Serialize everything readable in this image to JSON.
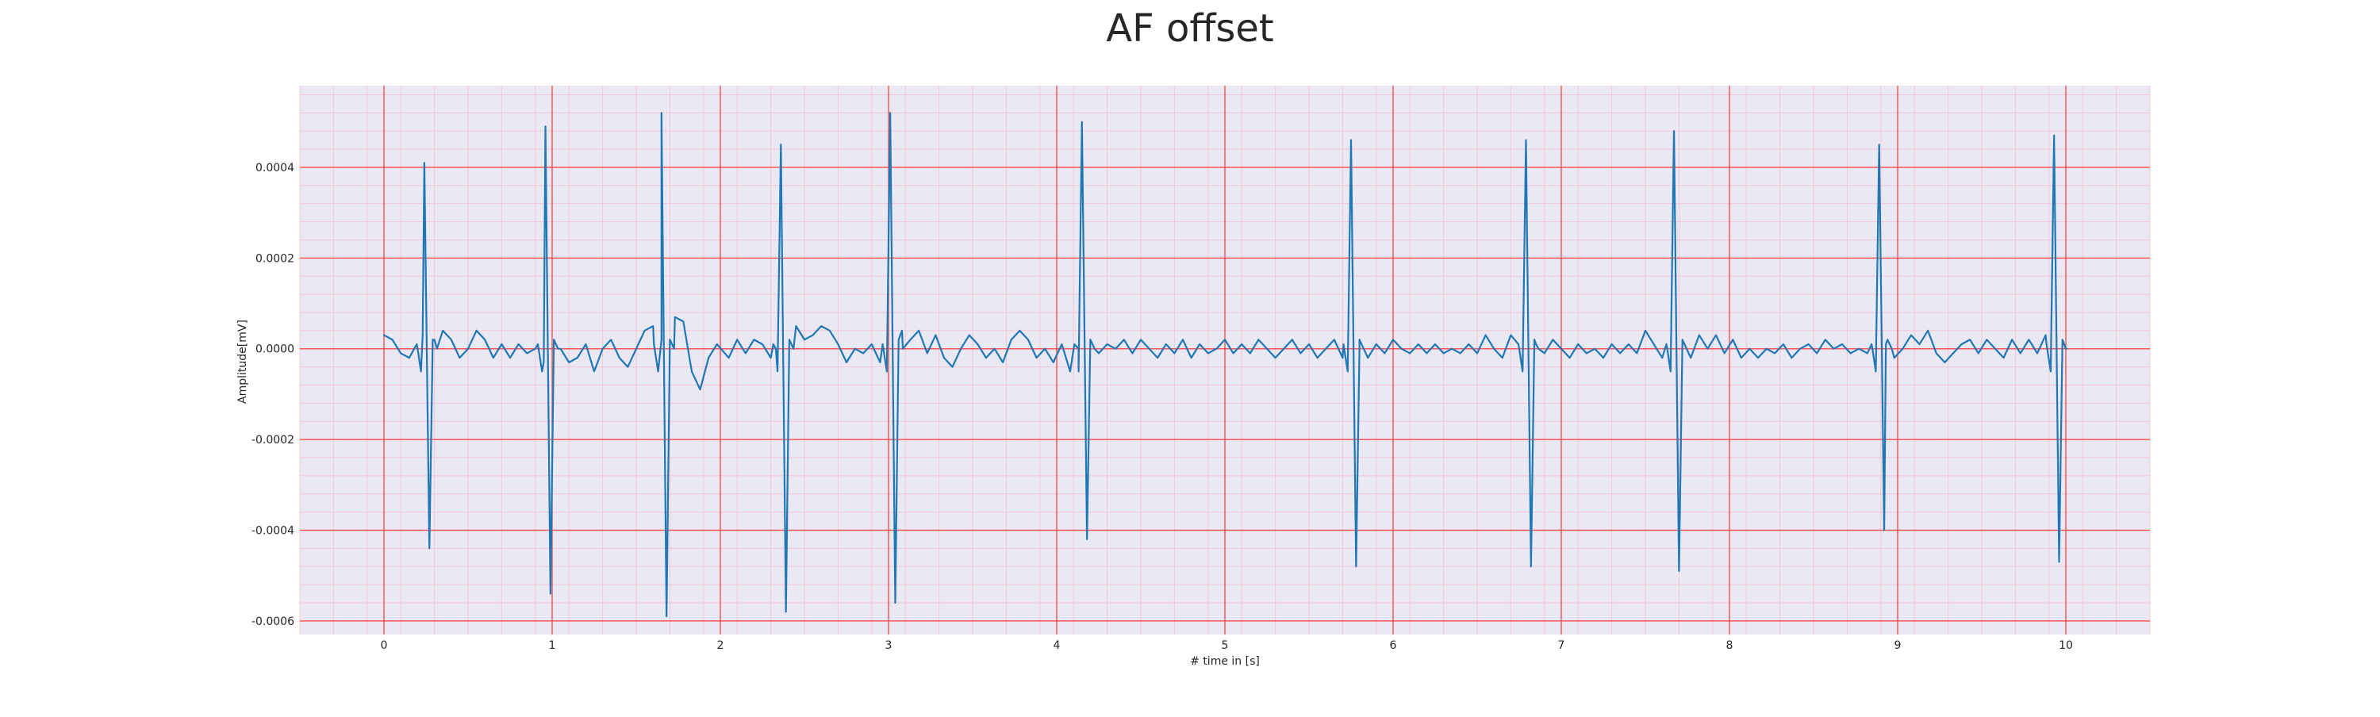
{
  "chart_data": {
    "type": "line",
    "title": "AF offset",
    "xlabel": "# time in [s]",
    "ylabel": "Amplitude[mV]",
    "xlim": [
      -0.5,
      10.5
    ],
    "ylim": [
      -0.00063,
      0.00058
    ],
    "x_ticks": [
      0,
      1,
      2,
      3,
      4,
      5,
      6,
      7,
      8,
      9,
      10
    ],
    "y_ticks": [
      -0.0006,
      -0.0004,
      -0.0002,
      0.0,
      0.0002,
      0.0004
    ],
    "x_tick_labels": [
      "0",
      "1",
      "2",
      "3",
      "4",
      "5",
      "6",
      "7",
      "8",
      "9",
      "10"
    ],
    "y_tick_labels": [
      "-0.0006",
      "-0.0004",
      "-0.0002",
      "0.0000",
      "0.0002",
      "0.0004"
    ],
    "grid": true,
    "minor_grid": true,
    "legend": false,
    "colors": {
      "line": "#1f77b4",
      "background": "#eae8f2",
      "major_grid": "#ff4040",
      "minor_grid": "#f7b8c8",
      "text": "#262626"
    },
    "series": [
      {
        "baseline": [
          [
            0.0,
            3e-05
          ],
          [
            0.05,
            2e-05
          ],
          [
            0.1,
            -1e-05
          ],
          [
            0.15,
            -2e-05
          ],
          [
            0.2,
            0.0
          ],
          [
            0.23,
            3e-05
          ],
          [
            0.3,
            2e-05
          ],
          [
            0.35,
            4e-05
          ],
          [
            0.4,
            2e-05
          ],
          [
            0.45,
            -2e-05
          ],
          [
            0.5,
            0.0
          ],
          [
            0.55,
            4e-05
          ],
          [
            0.6,
            2e-05
          ],
          [
            0.65,
            -2e-05
          ],
          [
            0.7,
            1e-05
          ],
          [
            0.75,
            -2e-05
          ],
          [
            0.8,
            1e-05
          ],
          [
            0.85,
            -1e-05
          ],
          [
            0.9,
            0.0
          ],
          [
            0.95,
            -3e-05
          ],
          [
            1.05,
            0.0
          ],
          [
            1.1,
            -3e-05
          ],
          [
            1.15,
            -2e-05
          ],
          [
            1.2,
            1e-05
          ],
          [
            1.25,
            -5e-05
          ],
          [
            1.3,
            0.0
          ],
          [
            1.35,
            2e-05
          ],
          [
            1.4,
            -2e-05
          ],
          [
            1.45,
            -4e-05
          ],
          [
            1.5,
            0.0
          ],
          [
            1.55,
            4e-05
          ],
          [
            1.6,
            5e-05
          ],
          [
            1.65,
            2e-05
          ],
          [
            1.73,
            7e-05
          ],
          [
            1.78,
            6e-05
          ],
          [
            1.83,
            -5e-05
          ],
          [
            1.88,
            -9e-05
          ],
          [
            1.93,
            -2e-05
          ],
          [
            1.98,
            1e-05
          ],
          [
            2.05,
            -2e-05
          ],
          [
            2.1,
            2e-05
          ],
          [
            2.15,
            -1e-05
          ],
          [
            2.2,
            2e-05
          ],
          [
            2.25,
            1e-05
          ],
          [
            2.3,
            -2e-05
          ],
          [
            2.33,
            0.0
          ],
          [
            2.45,
            5e-05
          ],
          [
            2.5,
            2e-05
          ],
          [
            2.55,
            3e-05
          ],
          [
            2.6,
            5e-05
          ],
          [
            2.65,
            4e-05
          ],
          [
            2.7,
            1e-05
          ],
          [
            2.75,
            -3e-05
          ],
          [
            2.8,
            0.0
          ],
          [
            2.85,
            -1e-05
          ],
          [
            2.9,
            1e-05
          ],
          [
            2.95,
            -3e-05
          ],
          [
            3.08,
            4e-05
          ],
          [
            3.13,
            2e-05
          ],
          [
            3.18,
            4e-05
          ],
          [
            3.23,
            -1e-05
          ],
          [
            3.28,
            3e-05
          ],
          [
            3.33,
            -2e-05
          ],
          [
            3.38,
            -4e-05
          ],
          [
            3.43,
            0.0
          ],
          [
            3.48,
            3e-05
          ],
          [
            3.53,
            1e-05
          ],
          [
            3.58,
            -2e-05
          ],
          [
            3.63,
            0.0
          ],
          [
            3.68,
            -3e-05
          ],
          [
            3.73,
            2e-05
          ],
          [
            3.78,
            4e-05
          ],
          [
            3.83,
            2e-05
          ],
          [
            3.88,
            -2e-05
          ],
          [
            3.93,
            0.0
          ],
          [
            3.98,
            -3e-05
          ],
          [
            4.03,
            1e-05
          ],
          [
            4.08,
            -5e-05
          ],
          [
            4.13,
            0.0
          ],
          [
            4.2,
            2e-05
          ],
          [
            4.25,
            -1e-05
          ],
          [
            4.3,
            1e-05
          ],
          [
            4.35,
            0.0
          ],
          [
            4.4,
            2e-05
          ],
          [
            4.45,
            -1e-05
          ],
          [
            4.5,
            2e-05
          ],
          [
            4.55,
            0.0
          ],
          [
            4.6,
            -2e-05
          ],
          [
            4.65,
            1e-05
          ],
          [
            4.7,
            -1e-05
          ],
          [
            4.75,
            2e-05
          ],
          [
            4.8,
            -2e-05
          ],
          [
            4.85,
            1e-05
          ],
          [
            4.9,
            -1e-05
          ],
          [
            4.95,
            0.0
          ],
          [
            5.0,
            2e-05
          ],
          [
            5.05,
            -1e-05
          ],
          [
            5.1,
            1e-05
          ],
          [
            5.15,
            -1e-05
          ],
          [
            5.2,
            2e-05
          ],
          [
            5.25,
            0.0
          ],
          [
            5.3,
            -2e-05
          ],
          [
            5.35,
            0.0
          ],
          [
            5.4,
            2e-05
          ],
          [
            5.45,
            -1e-05
          ],
          [
            5.5,
            1e-05
          ],
          [
            5.55,
            -2e-05
          ],
          [
            5.6,
            0.0
          ],
          [
            5.65,
            2e-05
          ],
          [
            5.7,
            -2e-05
          ],
          [
            5.8,
            0.0
          ],
          [
            5.85,
            -2e-05
          ],
          [
            5.9,
            1e-05
          ],
          [
            5.95,
            -1e-05
          ],
          [
            6.0,
            2e-05
          ],
          [
            6.05,
            0.0
          ],
          [
            6.1,
            -1e-05
          ],
          [
            6.15,
            1e-05
          ],
          [
            6.2,
            -1e-05
          ],
          [
            6.25,
            1e-05
          ],
          [
            6.3,
            -1e-05
          ],
          [
            6.35,
            0.0
          ],
          [
            6.4,
            -1e-05
          ],
          [
            6.45,
            1e-05
          ],
          [
            6.5,
            -1e-05
          ],
          [
            6.55,
            3e-05
          ],
          [
            6.6,
            0.0
          ],
          [
            6.65,
            -2e-05
          ],
          [
            6.7,
            3e-05
          ],
          [
            6.75,
            0.0
          ],
          [
            6.85,
            1e-05
          ],
          [
            6.9,
            -1e-05
          ],
          [
            6.95,
            2e-05
          ],
          [
            7.0,
            0.0
          ],
          [
            7.05,
            -2e-05
          ],
          [
            7.1,
            1e-05
          ],
          [
            7.15,
            -1e-05
          ],
          [
            7.2,
            0.0
          ],
          [
            7.25,
            -2e-05
          ],
          [
            7.3,
            1e-05
          ],
          [
            7.35,
            -1e-05
          ],
          [
            7.4,
            1e-05
          ],
          [
            7.45,
            -1e-05
          ],
          [
            7.5,
            4e-05
          ],
          [
            7.55,
            1e-05
          ],
          [
            7.6,
            -2e-05
          ],
          [
            7.63,
            0.0
          ],
          [
            7.72,
            1e-05
          ],
          [
            7.77,
            -2e-05
          ],
          [
            7.82,
            3e-05
          ],
          [
            7.87,
            0.0
          ],
          [
            7.92,
            3e-05
          ],
          [
            7.97,
            -1e-05
          ],
          [
            8.02,
            2e-05
          ],
          [
            8.07,
            -2e-05
          ],
          [
            8.12,
            0.0
          ],
          [
            8.17,
            -2e-05
          ],
          [
            8.22,
            0.0
          ],
          [
            8.27,
            -1e-05
          ],
          [
            8.32,
            1e-05
          ],
          [
            8.37,
            -2e-05
          ],
          [
            8.42,
            0.0
          ],
          [
            8.47,
            1e-05
          ],
          [
            8.52,
            -1e-05
          ],
          [
            8.57,
            2e-05
          ],
          [
            8.62,
            0.0
          ],
          [
            8.67,
            1e-05
          ],
          [
            8.72,
            -1e-05
          ],
          [
            8.77,
            0.0
          ],
          [
            8.82,
            -1e-05
          ],
          [
            8.85,
            0.0
          ],
          [
            8.93,
            1e-05
          ],
          [
            8.98,
            -2e-05
          ],
          [
            9.03,
            0.0
          ],
          [
            9.08,
            3e-05
          ],
          [
            9.13,
            1e-05
          ],
          [
            9.18,
            4e-05
          ],
          [
            9.23,
            -1e-05
          ],
          [
            9.28,
            -3e-05
          ],
          [
            9.33,
            -1e-05
          ],
          [
            9.38,
            1e-05
          ],
          [
            9.43,
            2e-05
          ],
          [
            9.48,
            -1e-05
          ],
          [
            9.53,
            2e-05
          ],
          [
            9.58,
            0.0
          ],
          [
            9.63,
            -2e-05
          ],
          [
            9.68,
            2e-05
          ],
          [
            9.73,
            -1e-05
          ],
          [
            9.78,
            2e-05
          ],
          [
            9.83,
            -1e-05
          ],
          [
            9.88,
            3e-05
          ],
          [
            10.0,
            0.0
          ]
        ],
        "qrs_complexes": [
          {
            "r_time": 0.24,
            "r_peak": 0.00041,
            "s_time": 0.27,
            "s_trough": -0.00044
          },
          {
            "r_time": 0.96,
            "r_peak": 0.00049,
            "s_time": 0.99,
            "s_trough": -0.00054
          },
          {
            "r_time": 1.65,
            "r_peak": 0.00052,
            "s_time": 1.68,
            "s_trough": -0.00059
          },
          {
            "r_time": 2.36,
            "r_peak": 0.00045,
            "s_time": 2.39,
            "s_trough": -0.00058
          },
          {
            "r_time": 3.01,
            "r_peak": 0.00052,
            "s_time": 3.04,
            "s_trough": -0.00056
          },
          {
            "r_time": 4.15,
            "r_peak": 0.0005,
            "s_time": 4.18,
            "s_trough": -0.00042
          },
          {
            "r_time": 5.75,
            "r_peak": 0.00046,
            "s_time": 5.78,
            "s_trough": -0.00048
          },
          {
            "r_time": 6.79,
            "r_peak": 0.00046,
            "s_time": 6.82,
            "s_trough": -0.00048
          },
          {
            "r_time": 7.67,
            "r_peak": 0.00048,
            "s_time": 7.7,
            "s_trough": -0.00049
          },
          {
            "r_time": 8.89,
            "r_peak": 0.00045,
            "s_time": 8.92,
            "s_trough": -0.0004
          },
          {
            "r_time": 9.93,
            "r_peak": 0.00047,
            "s_time": 9.96,
            "s_trough": -0.00047
          }
        ]
      }
    ]
  }
}
